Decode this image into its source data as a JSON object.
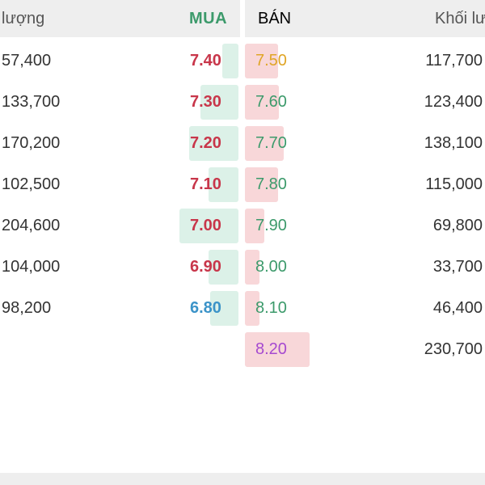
{
  "header": {
    "left_volume_label": "lượng",
    "buy_label": "MUA",
    "sell_label": "BÁN",
    "right_volume_label": "Khối lư"
  },
  "colors": {
    "buy_header": "#3c9a6b",
    "sell_header": "#c8364a",
    "price_red": "#c8364a",
    "price_green": "#3c9a6b",
    "price_blue": "#3b93c8",
    "price_yellow": "#e0a526",
    "price_purple": "#a64ad0",
    "buy_bar": "#dcf1e8",
    "sell_bar": "#f8d7d9"
  },
  "rows": [
    {
      "buy_volume": "57,400",
      "buy_price": "7.40",
      "buy_price_color": "price_red",
      "buy_level": 0.27,
      "sell_price": "7.50",
      "sell_price_color": "price_yellow",
      "sell_level": 0.51,
      "sell_volume": "117,700"
    },
    {
      "buy_volume": "133,700",
      "buy_price": "7.30",
      "buy_price_color": "price_red",
      "buy_level": 0.63,
      "sell_price": "7.60",
      "sell_price_color": "price_green",
      "sell_level": 0.53,
      "sell_volume": "123,400"
    },
    {
      "buy_volume": "170,200",
      "buy_price": "7.20",
      "buy_price_color": "price_red",
      "buy_level": 0.81,
      "sell_price": "7.70",
      "sell_price_color": "price_green",
      "sell_level": 0.6,
      "sell_volume": "138,100"
    },
    {
      "buy_volume": "102,500",
      "buy_price": "7.10",
      "buy_price_color": "price_red",
      "buy_level": 0.49,
      "sell_price": "7.80",
      "sell_price_color": "price_green",
      "sell_level": 0.51,
      "sell_volume": "115,000"
    },
    {
      "buy_volume": "204,600",
      "buy_price": "7.00",
      "buy_price_color": "price_red",
      "buy_level": 0.97,
      "sell_price": "7.90",
      "sell_price_color": "price_green",
      "sell_level": 0.3,
      "sell_volume": "69,800"
    },
    {
      "buy_volume": "104,000",
      "buy_price": "6.90",
      "buy_price_color": "price_red",
      "buy_level": 0.49,
      "sell_price": "8.00",
      "sell_price_color": "price_green",
      "sell_level": 0.15,
      "sell_volume": "33,700"
    },
    {
      "buy_volume": "98,200",
      "buy_price": "6.80",
      "buy_price_color": "price_blue",
      "buy_level": 0.46,
      "sell_price": "8.10",
      "sell_price_color": "price_green",
      "sell_level": 0.2,
      "sell_volume": "46,400"
    },
    {
      "buy_volume": "",
      "buy_price": "",
      "buy_price_color": "price_red",
      "buy_level": 0,
      "sell_price": "8.20",
      "sell_price_color": "price_purple",
      "sell_level": 1.0,
      "sell_volume": "230,700"
    }
  ]
}
